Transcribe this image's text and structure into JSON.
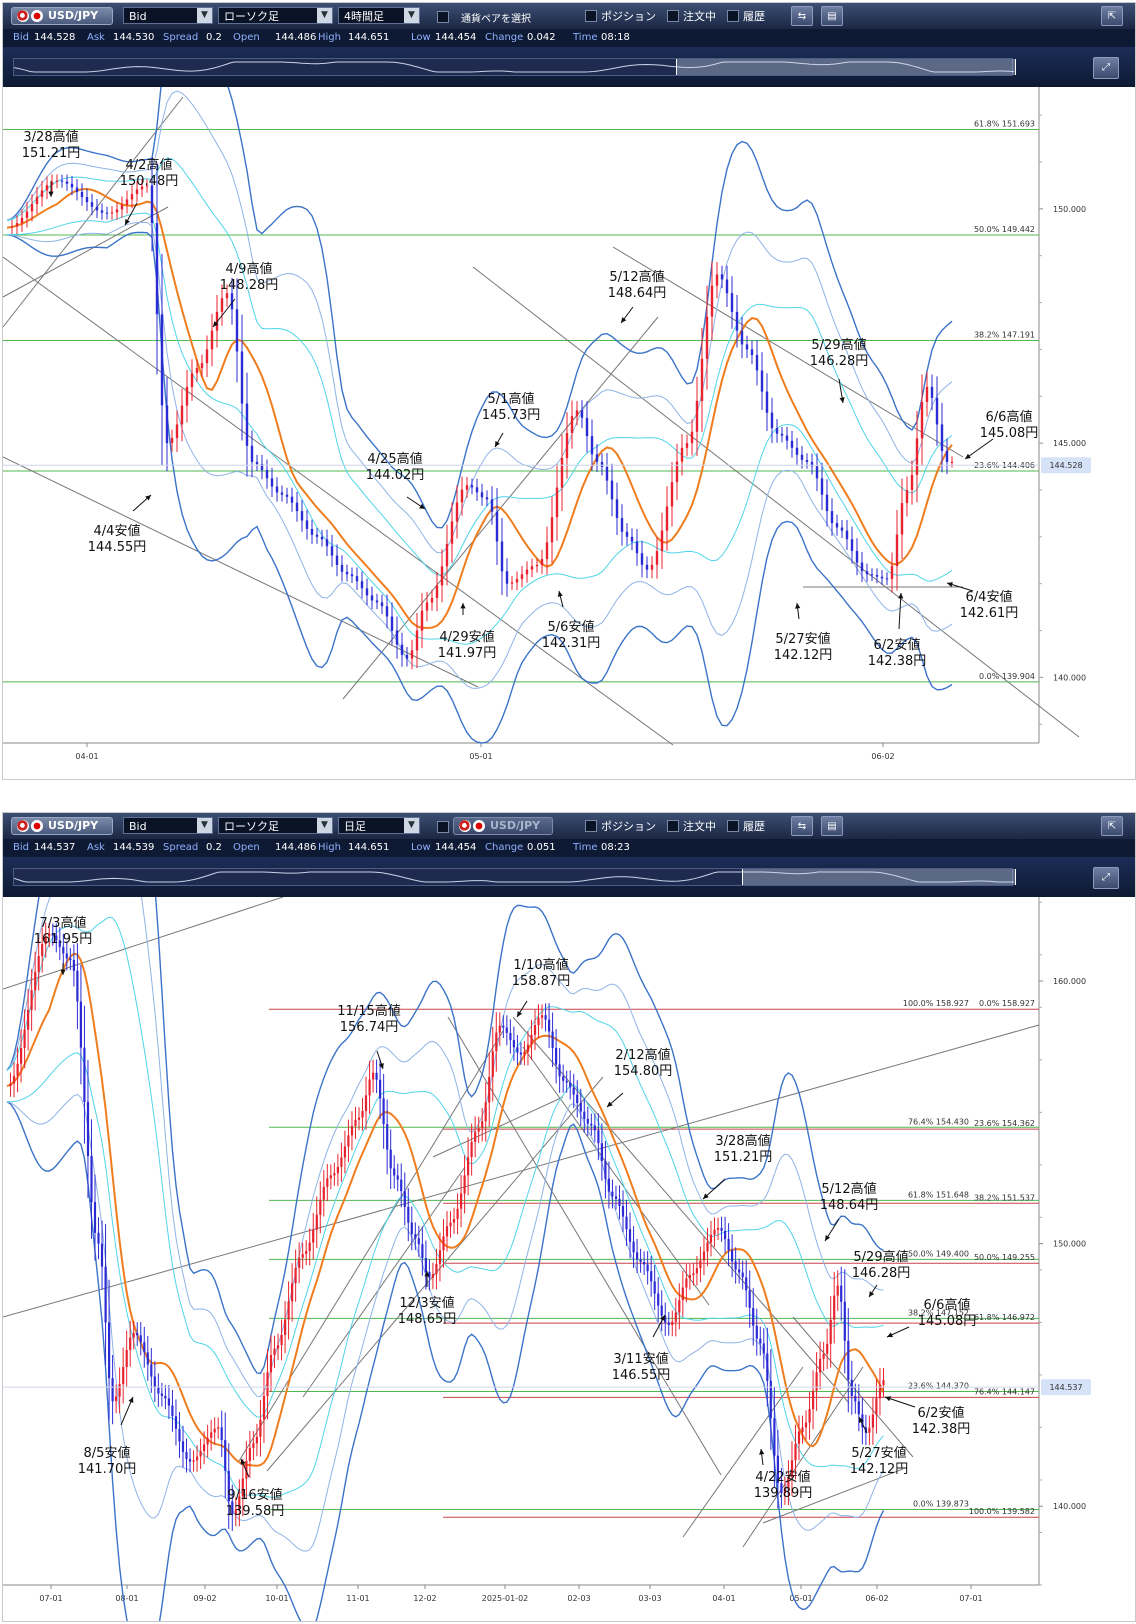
{
  "panels": [
    {
      "symbol": "USD/JPY",
      "price_type": "Bid",
      "chart_type": "ローソク足",
      "timeframe": "4時間足",
      "pair_select": "通貨ペアを選択",
      "checkboxes": [
        "ポジション",
        "注文中",
        "履歴"
      ],
      "quotes": {
        "Bid": "144.528",
        "Ask": "144.530",
        "Spread": "0.2",
        "Open": "144.486",
        "High": "144.651",
        "Low": "144.454",
        "Change": "0.042",
        "Time": "08:18"
      },
      "current_price": "144.528"
    },
    {
      "symbol": "USD/JPY",
      "price_type": "Bid",
      "chart_type": "ローソク足",
      "timeframe": "日足",
      "pair_select": "USD/JPY",
      "checkboxes": [
        "ポジション",
        "注文中",
        "履歴"
      ],
      "quotes": {
        "Bid": "144.537",
        "Ask": "144.539",
        "Spread": "0.2",
        "Open": "144.486",
        "High": "144.651",
        "Low": "144.454",
        "Change": "0.051",
        "Time": "08:23"
      },
      "current_price": "144.537"
    }
  ],
  "quote_keys": [
    "Bid",
    "Ask",
    "Spread",
    "Open",
    "High",
    "Low",
    "Change",
    "Time"
  ],
  "colors": {
    "bull": "#e8222e",
    "bear": "#2b2bd6",
    "ma_short": "#ef7d1e",
    "band_inner": "#4fd4e8",
    "band_mid": "#8fb3e6",
    "band_outer": "#3b73c8",
    "fib_green": "#4fb84f",
    "fib_red": "#c9434a"
  },
  "chart_data": [
    {
      "type": "candlestick",
      "title": "",
      "timeframe": "4時間足",
      "ylim": [
        138.6,
        152.6
      ],
      "y_ticks": [
        140.0,
        145.0,
        150.0
      ],
      "x_ticks": [
        "04-01",
        "05-01",
        "06-02"
      ],
      "fib_levels": [
        {
          "label": "61.8%",
          "value": "151.693",
          "y": 151.693
        },
        {
          "label": "50.0%",
          "value": "149.442",
          "y": 149.442
        },
        {
          "label": "38.2%",
          "value": "147.191",
          "y": 147.191
        },
        {
          "label": "23.6%",
          "value": "144.406",
          "y": 144.406
        },
        {
          "label": "0.0%",
          "value": "139.904",
          "y": 139.904
        }
      ],
      "key_points": [
        {
          "date": "3/28",
          "kind": "高値",
          "value": 151.21
        },
        {
          "date": "4/2",
          "kind": "高値",
          "value": 150.48
        },
        {
          "date": "4/4",
          "kind": "安値",
          "value": 144.55
        },
        {
          "date": "4/9",
          "kind": "高値",
          "value": 148.28
        },
        {
          "date": "4/25",
          "kind": "高値",
          "value": 144.02
        },
        {
          "date": "4/29",
          "kind": "安値",
          "value": 141.97
        },
        {
          "date": "5/1",
          "kind": "高値",
          "value": 145.73
        },
        {
          "date": "5/6",
          "kind": "安値",
          "value": 142.31
        },
        {
          "date": "5/12",
          "kind": "高値",
          "value": 148.64
        },
        {
          "date": "5/27",
          "kind": "安値",
          "value": 142.12
        },
        {
          "date": "5/29",
          "kind": "高値",
          "value": 146.28
        },
        {
          "date": "6/2",
          "kind": "安値",
          "value": 142.38
        },
        {
          "date": "6/4",
          "kind": "安値",
          "value": 142.61
        },
        {
          "date": "6/6",
          "kind": "高値",
          "value": 145.08
        }
      ],
      "annotations": [
        {
          "l1": "3/28高値",
          "l2": "151.21円"
        },
        {
          "l1": "4/2高値",
          "l2": "150.48円"
        },
        {
          "l1": "4/4安値",
          "l2": "144.55円"
        },
        {
          "l1": "4/9高値",
          "l2": "148.28円"
        },
        {
          "l1": "4/25高値",
          "l2": "144.02円"
        },
        {
          "l1": "4/29安値",
          "l2": "141.97円"
        },
        {
          "l1": "5/1高値",
          "l2": "145.73円"
        },
        {
          "l1": "5/6安値",
          "l2": "142.31円"
        },
        {
          "l1": "5/12高値",
          "l2": "148.64円"
        },
        {
          "l1": "5/27安値",
          "l2": "142.12円"
        },
        {
          "l1": "5/29高値",
          "l2": "146.28円"
        },
        {
          "l1": "6/2安値",
          "l2": "142.38円"
        },
        {
          "l1": "6/4安値",
          "l2": "142.61円"
        },
        {
          "l1": "6/6高値",
          "l2": "145.08円"
        }
      ]
    },
    {
      "type": "candlestick",
      "title": "",
      "timeframe": "日足",
      "ylim": [
        137.0,
        163.2
      ],
      "y_ticks": [
        140.0,
        150.0,
        160.0
      ],
      "x_ticks": [
        "07-01",
        "08-01",
        "09-02",
        "10-01",
        "11-01",
        "12-02",
        "2025-01-02",
        "02-03",
        "03-03",
        "04-01",
        "05-01",
        "06-02",
        "07-01"
      ],
      "fib_levels": [
        {
          "label": "100.0%",
          "value": "158.927",
          "y": 158.927,
          "side": "left"
        },
        {
          "label": "0.0%",
          "value": "158.927",
          "y": 158.927,
          "side": "right"
        },
        {
          "label": "76.4%",
          "value": "154.430",
          "y": 154.43,
          "side": "left"
        },
        {
          "label": "23.6%",
          "value": "154.362",
          "y": 154.362,
          "side": "right"
        },
        {
          "label": "61.8%",
          "value": "151.648",
          "y": 151.648,
          "side": "left"
        },
        {
          "label": "38.2%",
          "value": "151.537",
          "y": 151.537,
          "side": "right"
        },
        {
          "label": "50.0%",
          "value": "149.400",
          "y": 149.4,
          "side": "left"
        },
        {
          "label": "50.0%",
          "value": "149.255",
          "y": 149.255,
          "side": "right"
        },
        {
          "label": "38.2%",
          "value": "147.152",
          "y": 147.152,
          "side": "left"
        },
        {
          "label": "61.8%",
          "value": "146.972",
          "y": 146.972,
          "side": "right"
        },
        {
          "label": "23.6%",
          "value": "144.370",
          "y": 144.37,
          "side": "left"
        },
        {
          "label": "76.4%",
          "value": "144.147",
          "y": 144.147,
          "side": "right"
        },
        {
          "label": "0.0%",
          "value": "139.873",
          "y": 139.873,
          "side": "left"
        },
        {
          "label": "100.0%",
          "value": "139.582",
          "y": 139.582,
          "side": "right"
        }
      ],
      "key_points": [
        {
          "date": "7/3",
          "kind": "高値",
          "value": 161.95
        },
        {
          "date": "8/5",
          "kind": "安値",
          "value": 141.7
        },
        {
          "date": "9/16",
          "kind": "安値",
          "value": 139.58
        },
        {
          "date": "11/15",
          "kind": "高値",
          "value": 156.74
        },
        {
          "date": "12/3",
          "kind": "安値",
          "value": 148.65
        },
        {
          "date": "1/10",
          "kind": "高値",
          "value": 158.87
        },
        {
          "date": "2/12",
          "kind": "高値",
          "value": 154.8
        },
        {
          "date": "3/11",
          "kind": "安値",
          "value": 146.55
        },
        {
          "date": "3/28",
          "kind": "高値",
          "value": 151.21
        },
        {
          "date": "4/22",
          "kind": "安値",
          "value": 139.89
        },
        {
          "date": "5/12",
          "kind": "高値",
          "value": 148.64
        },
        {
          "date": "5/27",
          "kind": "安値",
          "value": 142.12
        },
        {
          "date": "5/29",
          "kind": "高値",
          "value": 146.28
        },
        {
          "date": "6/2",
          "kind": "安値",
          "value": 142.38
        },
        {
          "date": "6/6",
          "kind": "高値",
          "value": 145.08
        }
      ],
      "annotations": [
        {
          "l1": "7/3高値",
          "l2": "161.95円"
        },
        {
          "l1": "8/5安値",
          "l2": "141.70円"
        },
        {
          "l1": "9/16安値",
          "l2": "139.58円"
        },
        {
          "l1": "11/15高値",
          "l2": "156.74円"
        },
        {
          "l1": "12/3安値",
          "l2": "148.65円"
        },
        {
          "l1": "1/10高値",
          "l2": "158.87円"
        },
        {
          "l1": "2/12高値",
          "l2": "154.80円"
        },
        {
          "l1": "3/11安値",
          "l2": "146.55円"
        },
        {
          "l1": "3/28高値",
          "l2": "151.21円"
        },
        {
          "l1": "4/22安値",
          "l2": "139.89円"
        },
        {
          "l1": "5/12高値",
          "l2": "148.64円"
        },
        {
          "l1": "5/27安値",
          "l2": "142.12円"
        },
        {
          "l1": "5/29高値",
          "l2": "146.28円"
        },
        {
          "l1": "6/2安値",
          "l2": "142.38円"
        },
        {
          "l1": "6/6高値",
          "l2": "145.08円"
        }
      ]
    }
  ]
}
